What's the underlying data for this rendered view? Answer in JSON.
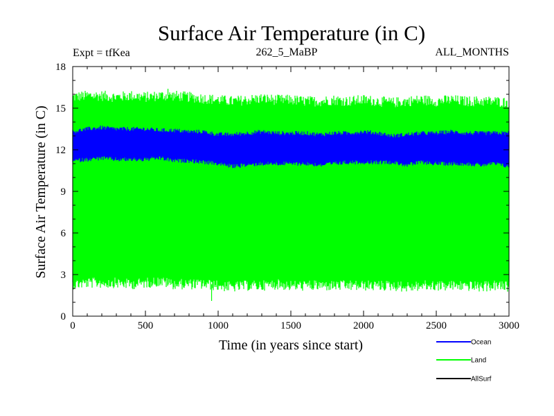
{
  "chart_data": {
    "type": "line",
    "title": "Surface Air Temperature (in C)",
    "annotations": {
      "left": "Expt = tfKea",
      "center": "262_5_MaBP",
      "right": "ALL_MONTHS"
    },
    "xlabel": "Time (in years since start)",
    "ylabel": "Surface Air Temperature (in C)",
    "xlim": [
      0,
      3000
    ],
    "ylim": [
      0,
      18
    ],
    "xticks": [
      0,
      500,
      1000,
      1500,
      2000,
      2500,
      3000
    ],
    "yticks": [
      0,
      3,
      6,
      9,
      12,
      15,
      18
    ],
    "grid": false,
    "legend_position": "bottom-right, below plot",
    "series": [
      {
        "name": "Ocean",
        "color": "#0000ff",
        "kind": "high-frequency annual oscillation",
        "x": [
          0,
          100,
          200,
          300,
          400,
          500,
          600,
          700,
          800,
          900,
          1000,
          1100,
          1200,
          1300,
          1400,
          1500,
          1600,
          1700,
          1800,
          1900,
          2000,
          2100,
          2200,
          2300,
          2400,
          2500,
          2600,
          2700,
          2800,
          2900,
          3000
        ],
        "upper": [
          13.3,
          13.5,
          13.6,
          13.5,
          13.5,
          13.5,
          13.4,
          13.4,
          13.3,
          13.3,
          13.1,
          13.1,
          13.2,
          13.3,
          13.2,
          13.2,
          13.2,
          13.1,
          13.2,
          13.2,
          13.3,
          13.2,
          13.0,
          13.1,
          13.2,
          13.2,
          13.3,
          13.2,
          13.2,
          13.2,
          13.2
        ],
        "lower": [
          11.2,
          11.3,
          11.4,
          11.3,
          11.3,
          11.3,
          11.4,
          11.2,
          11.2,
          11.1,
          11.0,
          10.8,
          10.9,
          11.0,
          11.0,
          11.0,
          11.0,
          10.9,
          11.0,
          11.1,
          11.1,
          11.1,
          11.1,
          10.9,
          11.1,
          11.0,
          11.0,
          11.0,
          10.9,
          11.0,
          10.8
        ]
      },
      {
        "name": "Land",
        "color": "#00ff00",
        "kind": "high-frequency annual oscillation",
        "x": [
          0,
          100,
          200,
          300,
          400,
          500,
          600,
          700,
          800,
          900,
          1000,
          1100,
          1200,
          1300,
          1400,
          1500,
          1600,
          1700,
          1800,
          1900,
          2000,
          2100,
          2200,
          2300,
          2400,
          2500,
          2600,
          2700,
          2800,
          2900,
          3000
        ],
        "upper": [
          15.8,
          15.9,
          15.9,
          15.8,
          15.9,
          15.8,
          15.9,
          15.9,
          15.8,
          15.7,
          15.6,
          15.5,
          15.6,
          15.7,
          15.6,
          15.6,
          15.5,
          15.5,
          15.6,
          15.5,
          15.6,
          15.5,
          15.4,
          15.5,
          15.6,
          15.5,
          15.6,
          15.5,
          15.5,
          15.5,
          15.4
        ],
        "lower": [
          2.3,
          2.4,
          2.4,
          2.4,
          2.3,
          2.4,
          2.5,
          2.3,
          2.3,
          2.3,
          2.2,
          2.1,
          2.2,
          2.2,
          2.3,
          2.2,
          2.2,
          2.2,
          2.2,
          2.2,
          2.2,
          2.2,
          2.2,
          2.1,
          2.2,
          2.2,
          2.2,
          2.2,
          2.1,
          2.2,
          2.1
        ],
        "extremes": {
          "max": 16.4,
          "min": 1.1
        }
      },
      {
        "name": "AllSurf",
        "color": "#000000",
        "kind": "not visible in plot area"
      }
    ]
  }
}
